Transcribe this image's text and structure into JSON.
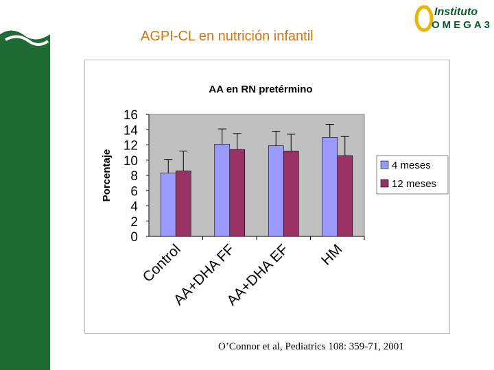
{
  "slide": {
    "title": "AGPI-CL en nutrición infantil",
    "brand_line1": "Instituto",
    "brand_line2": "OMEGA3",
    "citation": "O’Connor  et al, Pediatrics 108: 359-71, 2001"
  },
  "colors": {
    "sidebar": "#1e6b33",
    "title": "#d9730e",
    "plot_area": "#c0c0c0",
    "series_4": "#9999ff",
    "series_12": "#993366"
  },
  "chart_data": {
    "type": "bar",
    "title": "AA en RN pretérmino",
    "xlabel": "",
    "ylabel": "Porcentaje",
    "ylim": [
      0,
      16
    ],
    "yticks": [
      0,
      2,
      4,
      6,
      8,
      10,
      12,
      14,
      16
    ],
    "categories": [
      "Control",
      "AA+DHA FF",
      "AA+DHA EF",
      "HM"
    ],
    "series": [
      {
        "name": "4 meses",
        "values": [
          8.3,
          12.1,
          11.9,
          13.0
        ],
        "errors": [
          1.8,
          2.0,
          1.9,
          1.7
        ],
        "color": "#9999ff"
      },
      {
        "name": "12 meses",
        "values": [
          8.6,
          11.4,
          11.2,
          10.6
        ],
        "errors": [
          2.6,
          2.1,
          2.2,
          2.5
        ],
        "color": "#993366"
      }
    ],
    "grid": false,
    "legend_position": "right",
    "error_bars": true
  }
}
